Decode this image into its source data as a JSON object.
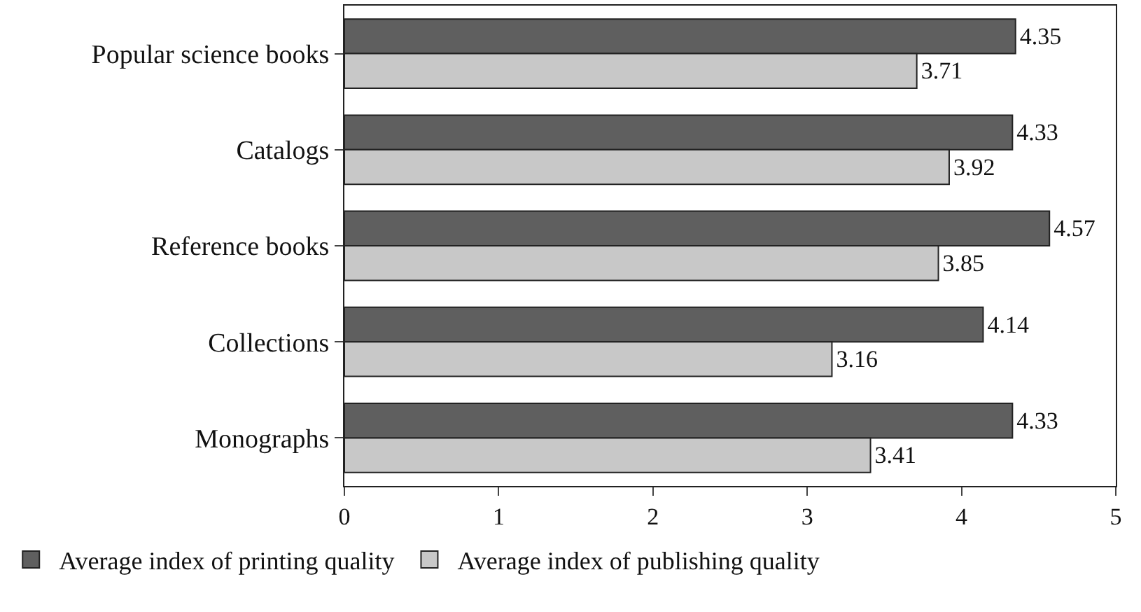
{
  "chart_data": {
    "type": "bar",
    "orientation": "horizontal",
    "categories": [
      "Popular science books",
      "Catalogs",
      "Reference books",
      "Collections",
      "Monographs"
    ],
    "series": [
      {
        "name": "Average index of printing quality",
        "color": "#5f5f5f",
        "values": [
          4.35,
          4.33,
          4.57,
          4.14,
          4.33
        ]
      },
      {
        "name": "Average index of publishing quality",
        "color": "#c8c8c8",
        "values": [
          3.71,
          3.92,
          3.85,
          3.16,
          3.41
        ]
      }
    ],
    "xlim": [
      0,
      5
    ],
    "xticks": [
      0,
      1,
      2,
      3,
      4,
      5
    ],
    "legend": "bottom",
    "data_labels": true
  }
}
